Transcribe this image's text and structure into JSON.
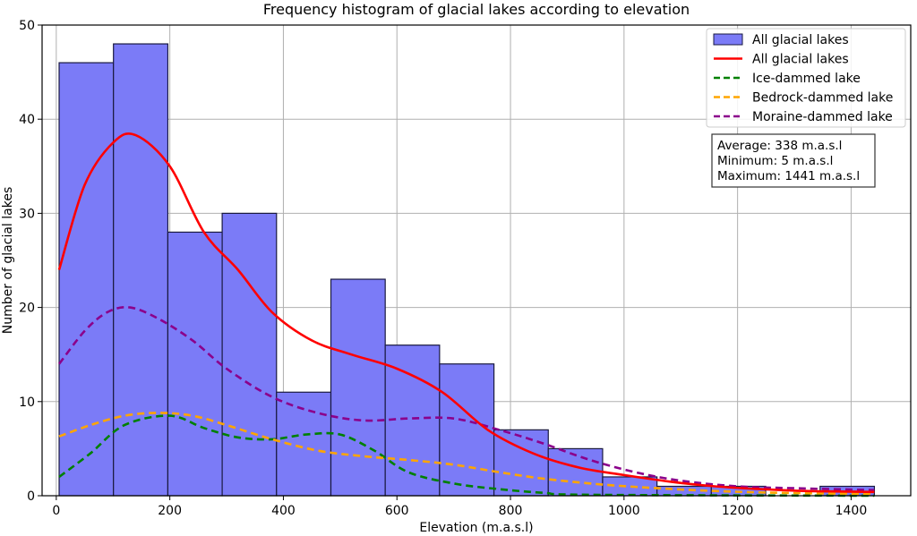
{
  "chart_data": {
    "type": "bar",
    "title": "Frequency histogram of glacial lakes according to elevation",
    "xlabel": "Elevation (m.a.s.l)",
    "ylabel": "Number of glacial lakes",
    "xlim": [
      -25,
      1505
    ],
    "ylim": [
      0,
      50
    ],
    "grid": true,
    "legend_placement": "top-right",
    "x_ticks": [
      0,
      200,
      400,
      600,
      800,
      1000,
      1200,
      1400
    ],
    "y_ticks": [
      0,
      10,
      20,
      30,
      40,
      50
    ],
    "histogram": {
      "name": "All glacial lakes",
      "color": "#7b7bf7",
      "edge_color": "#1a1a40",
      "bins": [
        {
          "start": 5,
          "end": 100.7,
          "count": 46
        },
        {
          "start": 100.7,
          "end": 196.5,
          "count": 48
        },
        {
          "start": 196.5,
          "end": 292.2,
          "count": 28
        },
        {
          "start": 292.2,
          "end": 387.9,
          "count": 30
        },
        {
          "start": 387.9,
          "end": 483.7,
          "count": 11
        },
        {
          "start": 483.7,
          "end": 579.4,
          "count": 23
        },
        {
          "start": 579.4,
          "end": 675.1,
          "count": 16
        },
        {
          "start": 675.1,
          "end": 770.9,
          "count": 14
        },
        {
          "start": 770.9,
          "end": 866.6,
          "count": 7
        },
        {
          "start": 866.6,
          "end": 962.3,
          "count": 5
        },
        {
          "start": 962.3,
          "end": 1058.1,
          "count": 2
        },
        {
          "start": 1058.1,
          "end": 1153.8,
          "count": 1
        },
        {
          "start": 1153.8,
          "end": 1249.5,
          "count": 1
        },
        {
          "start": 1249.5,
          "end": 1345.3,
          "count": 0
        },
        {
          "start": 1345.3,
          "end": 1441,
          "count": 1
        }
      ]
    },
    "series": [
      {
        "name": "All glacial lakes",
        "style": "solid",
        "color": "#ff0000",
        "x": [
          5,
          50,
          100,
          140,
          200,
          260,
          320,
          380,
          450,
          520,
          600,
          680,
          760,
          840,
          920,
          1000,
          1080,
          1160,
          1240,
          1320,
          1441
        ],
        "y": [
          24,
          33,
          37.5,
          38.3,
          35,
          28,
          24,
          19.5,
          16.5,
          15,
          13.5,
          11,
          7,
          4.5,
          3,
          2.2,
          1.5,
          1,
          0.7,
          0.5,
          0.4
        ]
      },
      {
        "name": "Ice-dammed lake",
        "style": "dashed",
        "color": "#008000",
        "x": [
          5,
          60,
          120,
          200,
          260,
          320,
          380,
          440,
          500,
          560,
          620,
          700,
          780,
          860,
          940,
          1441
        ],
        "y": [
          2,
          4.5,
          7.5,
          8.5,
          7.2,
          6.2,
          6,
          6.5,
          6.5,
          4.8,
          2.5,
          1.3,
          0.7,
          0.3,
          0.1,
          0
        ]
      },
      {
        "name": "Bedrock-dammed lake",
        "style": "dashed",
        "color": "#ffa500",
        "x": [
          5,
          60,
          120,
          180,
          240,
          300,
          380,
          460,
          540,
          620,
          700,
          780,
          860,
          960,
          1060,
          1160,
          1280,
          1441
        ],
        "y": [
          6.3,
          7.5,
          8.5,
          8.8,
          8.5,
          7.5,
          6,
          4.8,
          4.2,
          3.8,
          3.3,
          2.5,
          1.8,
          1.2,
          0.8,
          0.5,
          0.3,
          0.2
        ]
      },
      {
        "name": "Moraine-dammed lake",
        "style": "dashed",
        "color": "#8b008b",
        "x": [
          5,
          50,
          90,
          130,
          180,
          240,
          300,
          380,
          460,
          540,
          620,
          700,
          780,
          860,
          940,
          1020,
          1100,
          1200,
          1300,
          1441
        ],
        "y": [
          14,
          17.5,
          19.5,
          20,
          18.8,
          16.5,
          13.5,
          10.5,
          8.8,
          8,
          8.2,
          8.2,
          7,
          5.5,
          3.8,
          2.5,
          1.6,
          1,
          0.8,
          0.6
        ]
      }
    ],
    "legend": [
      {
        "label": "All glacial lakes",
        "kind": "patch",
        "color": "#7b7bf7"
      },
      {
        "label": "All glacial lakes",
        "kind": "line",
        "color": "#ff0000",
        "style": "solid"
      },
      {
        "label": "Ice-dammed lake",
        "kind": "line",
        "color": "#008000",
        "style": "dashed"
      },
      {
        "label": "Bedrock-dammed lake",
        "kind": "line",
        "color": "#ffa500",
        "style": "dashed"
      },
      {
        "label": "Moraine-dammed lake",
        "kind": "line",
        "color": "#8b008b",
        "style": "dashed"
      }
    ],
    "annotation_lines": [
      "Average: 338 m.a.s.l",
      "Minimum: 5 m.a.s.l",
      "Maximum: 1441 m.a.s.l"
    ]
  }
}
